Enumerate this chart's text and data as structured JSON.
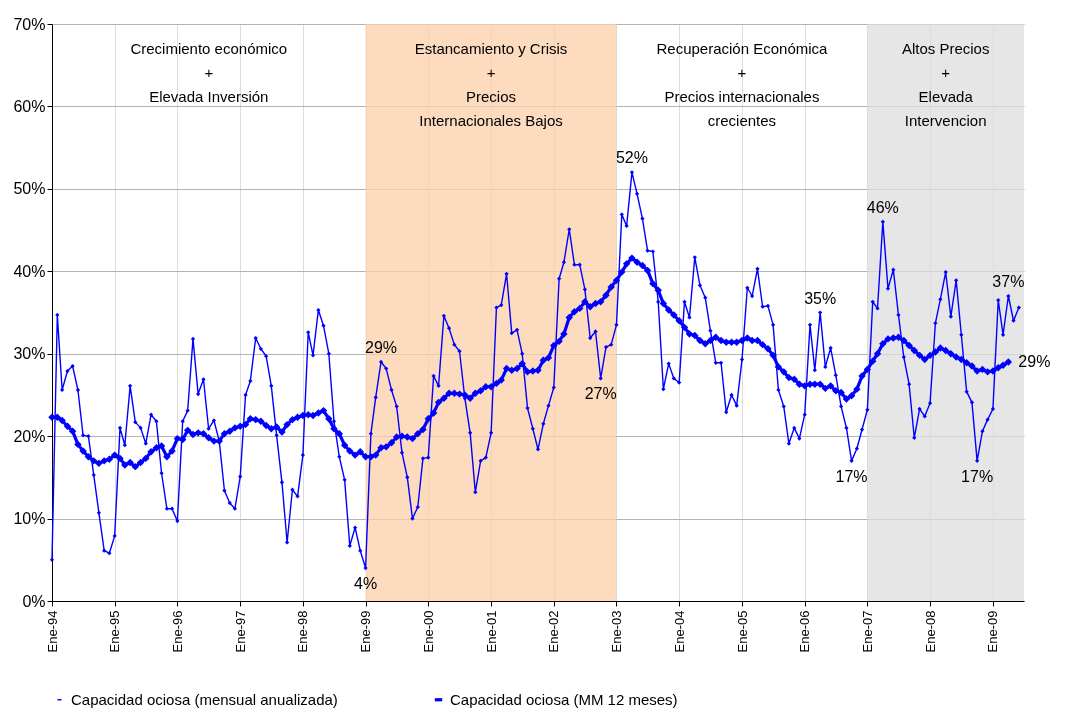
{
  "chart_data": {
    "type": "line",
    "x": [
      "1994-01",
      "1994-02",
      "1994-03",
      "1994-04",
      "1994-05",
      "1994-06",
      "1994-07",
      "1994-08",
      "1994-09",
      "1994-10",
      "1994-11",
      "1994-12",
      "1995-01",
      "1995-02",
      "1995-03",
      "1995-04",
      "1995-05",
      "1995-06",
      "1995-07",
      "1995-08",
      "1995-09",
      "1995-10",
      "1995-11",
      "1995-12",
      "1996-01",
      "1996-02",
      "1996-03",
      "1996-04",
      "1996-05",
      "1996-06",
      "1996-07",
      "1996-08",
      "1996-09",
      "1996-10",
      "1996-11",
      "1996-12",
      "1997-01",
      "1997-02",
      "1997-03",
      "1997-04",
      "1997-05",
      "1997-06",
      "1997-07",
      "1997-08",
      "1997-09",
      "1997-10",
      "1997-11",
      "1997-12",
      "1998-01",
      "1998-02",
      "1998-03",
      "1998-04",
      "1998-05",
      "1998-06",
      "1998-07",
      "1998-08",
      "1998-09",
      "1998-10",
      "1998-11",
      "1998-12",
      "1999-01",
      "1999-02",
      "1999-03",
      "1999-04",
      "1999-05",
      "1999-06",
      "1999-07",
      "1999-08",
      "1999-09",
      "1999-10",
      "1999-11",
      "1999-12",
      "2000-01",
      "2000-02",
      "2000-03",
      "2000-04",
      "2000-05",
      "2000-06",
      "2000-07",
      "2000-08",
      "2000-09",
      "2000-10",
      "2000-11",
      "2000-12",
      "2001-01",
      "2001-02",
      "2001-03",
      "2001-04",
      "2001-05",
      "2001-06",
      "2001-07",
      "2001-08",
      "2001-09",
      "2001-10",
      "2001-11",
      "2001-12",
      "2002-01",
      "2002-02",
      "2002-03",
      "2002-04",
      "2002-05",
      "2002-06",
      "2002-07",
      "2002-08",
      "2002-09",
      "2002-10",
      "2002-11",
      "2002-12",
      "2003-01",
      "2003-02",
      "2003-03",
      "2003-04",
      "2003-05",
      "2003-06",
      "2003-07",
      "2003-08",
      "2003-09",
      "2003-10",
      "2003-11",
      "2003-12",
      "2004-01",
      "2004-02",
      "2004-03",
      "2004-04",
      "2004-05",
      "2004-06",
      "2004-07",
      "2004-08",
      "2004-09",
      "2004-10",
      "2004-11",
      "2004-12",
      "2005-01",
      "2005-02",
      "2005-03",
      "2005-04",
      "2005-05",
      "2005-06",
      "2005-07",
      "2005-08",
      "2005-09",
      "2005-10",
      "2005-11",
      "2005-12",
      "2006-01",
      "2006-02",
      "2006-03",
      "2006-04",
      "2006-05",
      "2006-06",
      "2006-07",
      "2006-08",
      "2006-09",
      "2006-10",
      "2006-11",
      "2006-12",
      "2007-01",
      "2007-02",
      "2007-03",
      "2007-04",
      "2007-05",
      "2007-06",
      "2007-07",
      "2007-08",
      "2007-09",
      "2007-10",
      "2007-11",
      "2007-12",
      "2008-01",
      "2008-02",
      "2008-03",
      "2008-04",
      "2008-05",
      "2008-06",
      "2008-07",
      "2008-08",
      "2008-09",
      "2008-10",
      "2008-11",
      "2008-12",
      "2009-01",
      "2009-02",
      "2009-03",
      "2009-04",
      "2009-05",
      "2009-06"
    ],
    "series": [
      {
        "name": "Capacidad ociosa (mensual anualizada)",
        "color": "#0000ff",
        "values": [
          5.0,
          34.7,
          25.6,
          27.9,
          28.5,
          25.6,
          20.1,
          20.0,
          15.3,
          10.7,
          6.1,
          5.8,
          7.9,
          21.0,
          18.9,
          26.1,
          21.7,
          21.0,
          19.1,
          22.6,
          21.8,
          15.5,
          11.2,
          11.2,
          9.7,
          21.8,
          23.1,
          31.8,
          25.1,
          26.9,
          20.9,
          21.9,
          19.4,
          13.4,
          11.9,
          11.2,
          15.1,
          25.0,
          26.7,
          31.9,
          30.6,
          29.7,
          26.1,
          20.1,
          14.4,
          7.1,
          13.5,
          12.7,
          17.7,
          32.6,
          29.8,
          35.3,
          33.4,
          30.0,
          21.8,
          17.5,
          14.7,
          6.7,
          8.9,
          6.1,
          4,
          20.3,
          24.7,
          29,
          28.2,
          25.6,
          23.6,
          18.0,
          15.0,
          10.0,
          11.4,
          17.3,
          17.4,
          27.3,
          26.1,
          34.6,
          33.1,
          31.1,
          30.3,
          24.6,
          20.4,
          13.2,
          17.0,
          17.4,
          20.4,
          35.6,
          35.9,
          39.7,
          32.5,
          32.9,
          30.0,
          23.4,
          20.9,
          18.4,
          21.5,
          23.7,
          25.9,
          39.1,
          41.1,
          45.1,
          40.8,
          40.8,
          37.8,
          31.9,
          32.7,
          27,
          30.8,
          31.1,
          33.5,
          46.9,
          45.5,
          52,
          49.4,
          46.4,
          42.5,
          42.4,
          36.3,
          25.7,
          28.8,
          27.0,
          26.5,
          36.3,
          34.4,
          41.7,
          38.3,
          36.8,
          32.8,
          28.9,
          28.9,
          22.9,
          25.0,
          23.7,
          29.3,
          38.0,
          37.0,
          40.3,
          35.7,
          35.8,
          33.5,
          25.6,
          23.6,
          19.1,
          21.0,
          19.7,
          22.6,
          33.5,
          28.0,
          35,
          28.4,
          30.7,
          27.4,
          23.6,
          21.0,
          17,
          18.5,
          20.8,
          23.2,
          36.3,
          35.5,
          46,
          37.9,
          40.2,
          34.7,
          29.6,
          26.3,
          19.8,
          23.3,
          22.4,
          24.0,
          33.7,
          36.6,
          39.9,
          34.5,
          38.9,
          32.3,
          25.4,
          24.1,
          17,
          20.6,
          22.0,
          23.3,
          36.5,
          32.3,
          37,
          34.0,
          35.6
        ],
        "value_labels": [
          null,
          null,
          null,
          null,
          null,
          null,
          null,
          null,
          null,
          null,
          null,
          null,
          null,
          null,
          null,
          null,
          null,
          null,
          null,
          null,
          null,
          null,
          null,
          null,
          null,
          null,
          null,
          null,
          null,
          null,
          null,
          null,
          null,
          null,
          null,
          null,
          null,
          null,
          null,
          null,
          null,
          null,
          null,
          null,
          null,
          null,
          null,
          null,
          null,
          null,
          null,
          null,
          null,
          null,
          null,
          null,
          null,
          null,
          null,
          null,
          "4%",
          null,
          null,
          "29%",
          null,
          null,
          null,
          null,
          null,
          null,
          null,
          null,
          null,
          null,
          null,
          null,
          null,
          null,
          null,
          null,
          null,
          null,
          null,
          null,
          null,
          null,
          null,
          null,
          null,
          null,
          null,
          null,
          null,
          null,
          null,
          null,
          null,
          null,
          null,
          null,
          null,
          null,
          null,
          null,
          null,
          "27%",
          null,
          null,
          null,
          null,
          null,
          "52%",
          null,
          null,
          null,
          null,
          null,
          null,
          null,
          null,
          null,
          null,
          null,
          null,
          null,
          null,
          null,
          null,
          null,
          null,
          null,
          null,
          null,
          null,
          null,
          null,
          null,
          null,
          null,
          null,
          null,
          null,
          null,
          null,
          null,
          null,
          null,
          "35%",
          null,
          null,
          null,
          null,
          null,
          "17%",
          null,
          null,
          null,
          null,
          null,
          "46%",
          null,
          null,
          null,
          null,
          null,
          null,
          null,
          null,
          null,
          null,
          null,
          null,
          null,
          null,
          null,
          null,
          null,
          "17%",
          null,
          null,
          null,
          null,
          null,
          "37%",
          null,
          null
        ]
      },
      {
        "name": "Capacidad ociosa (MM 12 meses)",
        "color": "#0000ff",
        "values": [
          22.3,
          22.3,
          21.9,
          21.2,
          20.6,
          19.0,
          18.2,
          17.5,
          17.0,
          16.7,
          17.0,
          17.2,
          17.7,
          17.3,
          16.5,
          16.8,
          16.3,
          16.8,
          17.3,
          18.1,
          18.6,
          18.8,
          17.5,
          18.2,
          19.7,
          19.6,
          20.7,
          20.2,
          20.4,
          20.3,
          19.8,
          19.4,
          19.4,
          20.3,
          20.6,
          21.0,
          21.2,
          21.4,
          22.1,
          22.0,
          21.8,
          21.3,
          20.9,
          21.1,
          20.5,
          21.4,
          22.0,
          22.3,
          22.5,
          22.6,
          22.5,
          22.8,
          23.1,
          22.1,
          20.9,
          20.3,
          18.9,
          18.2,
          17.7,
          18.1,
          17.5,
          17.5,
          17.7,
          18.6,
          18.7,
          19.2,
          19.9,
          20.0,
          19.9,
          19.7,
          20.3,
          20.8,
          22.1,
          22.8,
          24.1,
          24.6,
          25.2,
          25.2,
          25.1,
          25.0,
          24.6,
          25.2,
          25.5,
          26.0,
          26.0,
          26.4,
          26.8,
          28.2,
          28.0,
          28.2,
          28.8,
          27.8,
          27.9,
          28.0,
          29.2,
          29.5,
          31.0,
          31.5,
          32.4,
          34.4,
          35.1,
          35.5,
          36.3,
          35.7,
          36.1,
          36.3,
          37.1,
          38.1,
          38.9,
          39.9,
          40.9,
          41.6,
          41.1,
          40.7,
          40.1,
          38.5,
          37.7,
          36.1,
          35.3,
          34.7,
          34.0,
          33.2,
          32.4,
          32.2,
          31.6,
          31.2,
          31.6,
          32.0,
          31.6,
          31.4,
          31.4,
          31.4,
          31.6,
          31.9,
          31.6,
          31.6,
          31.1,
          30.6,
          29.8,
          28.4,
          27.8,
          27.1,
          26.9,
          26.3,
          26.1,
          26.3,
          26.3,
          26.3,
          25.8,
          26.1,
          25.5,
          25.3,
          24.5,
          24.9,
          25.7,
          27.3,
          28.1,
          29.1,
          30.0,
          31.2,
          31.8,
          31.9,
          32.0,
          31.6,
          31.0,
          30.4,
          29.8,
          29.3,
          29.8,
          30.2,
          30.7,
          30.4,
          30.0,
          29.6,
          29.3,
          28.9,
          28.5,
          27.9,
          28.1,
          27.8,
          27.9,
          28.3,
          28.6,
          29,
          null,
          null
        ],
        "value_labels": [
          null,
          null,
          null,
          null,
          null,
          null,
          null,
          null,
          null,
          null,
          null,
          null,
          null,
          null,
          null,
          null,
          null,
          null,
          null,
          null,
          null,
          null,
          null,
          null,
          null,
          null,
          null,
          null,
          null,
          null,
          null,
          null,
          null,
          null,
          null,
          null,
          null,
          null,
          null,
          null,
          null,
          null,
          null,
          null,
          null,
          null,
          null,
          null,
          null,
          null,
          null,
          null,
          null,
          null,
          null,
          null,
          null,
          null,
          null,
          null,
          null,
          null,
          null,
          null,
          null,
          null,
          null,
          null,
          null,
          null,
          null,
          null,
          null,
          null,
          null,
          null,
          null,
          null,
          null,
          null,
          null,
          null,
          null,
          null,
          null,
          null,
          null,
          null,
          null,
          null,
          null,
          null,
          null,
          null,
          null,
          null,
          null,
          null,
          null,
          null,
          null,
          null,
          null,
          null,
          null,
          null,
          null,
          null,
          null,
          null,
          null,
          null,
          null,
          null,
          null,
          null,
          null,
          null,
          null,
          null,
          null,
          null,
          null,
          null,
          null,
          null,
          null,
          null,
          null,
          null,
          null,
          null,
          null,
          null,
          null,
          null,
          null,
          null,
          null,
          null,
          null,
          null,
          null,
          null,
          null,
          null,
          null,
          null,
          null,
          null,
          null,
          null,
          null,
          null,
          null,
          null,
          null,
          null,
          null,
          null,
          null,
          null,
          null,
          null,
          null,
          null,
          null,
          null,
          null,
          null,
          null,
          null,
          null,
          null,
          null,
          null,
          null,
          null,
          null,
          null,
          null,
          null,
          null,
          "29%",
          null,
          null
        ]
      }
    ],
    "xlim": [
      "1994-01",
      "2009-07"
    ],
    "xticks": [
      {
        "value": "1994-01",
        "label": "Ene-94"
      },
      {
        "value": "1995-01",
        "label": "Ene-95"
      },
      {
        "value": "1996-01",
        "label": "Ene-96"
      },
      {
        "value": "1997-01",
        "label": "Ene-97"
      },
      {
        "value": "1998-01",
        "label": "Ene-98"
      },
      {
        "value": "1999-01",
        "label": "Ene-99"
      },
      {
        "value": "2000-01",
        "label": "Ene-00"
      },
      {
        "value": "2001-01",
        "label": "Ene-01"
      },
      {
        "value": "2002-01",
        "label": "Ene-02"
      },
      {
        "value": "2003-01",
        "label": "Ene-03"
      },
      {
        "value": "2004-01",
        "label": "Ene-04"
      },
      {
        "value": "2005-01",
        "label": "Ene-05"
      },
      {
        "value": "2006-01",
        "label": "Ene-06"
      },
      {
        "value": "2007-01",
        "label": "Ene-07"
      },
      {
        "value": "2008-01",
        "label": "Ene-08"
      },
      {
        "value": "2009-01",
        "label": "Ene-09"
      }
    ],
    "ylim": [
      0,
      70
    ],
    "yticks": [
      {
        "value": 0,
        "label": "0%"
      },
      {
        "value": 10,
        "label": "10%"
      },
      {
        "value": 20,
        "label": "20%"
      },
      {
        "value": 30,
        "label": "30%"
      },
      {
        "value": 40,
        "label": "40%"
      },
      {
        "value": 50,
        "label": "50%"
      },
      {
        "value": 60,
        "label": "60%"
      },
      {
        "value": 70,
        "label": "70%"
      }
    ],
    "bands": [
      {
        "axis": "x",
        "from": "1999-01",
        "to": "2003-01",
        "label": "Estancamiento y Crisis\n+\nPrecios\nInternacionales Bajos",
        "color": "#fbcfa8"
      },
      {
        "axis": "x",
        "from": "2007-01",
        "to": "2009-07",
        "label": "Altos Precios\n+\nElevada\nIntervencion",
        "color": "#dedede"
      }
    ],
    "annotations": [
      "Crecimiento económico\n+\nElevada Inversión",
      "Recuperación Económica\n+\nPrecios internacionales\ncrecientes"
    ],
    "grid": true,
    "marker": "diamond",
    "legend": "bottom"
  }
}
